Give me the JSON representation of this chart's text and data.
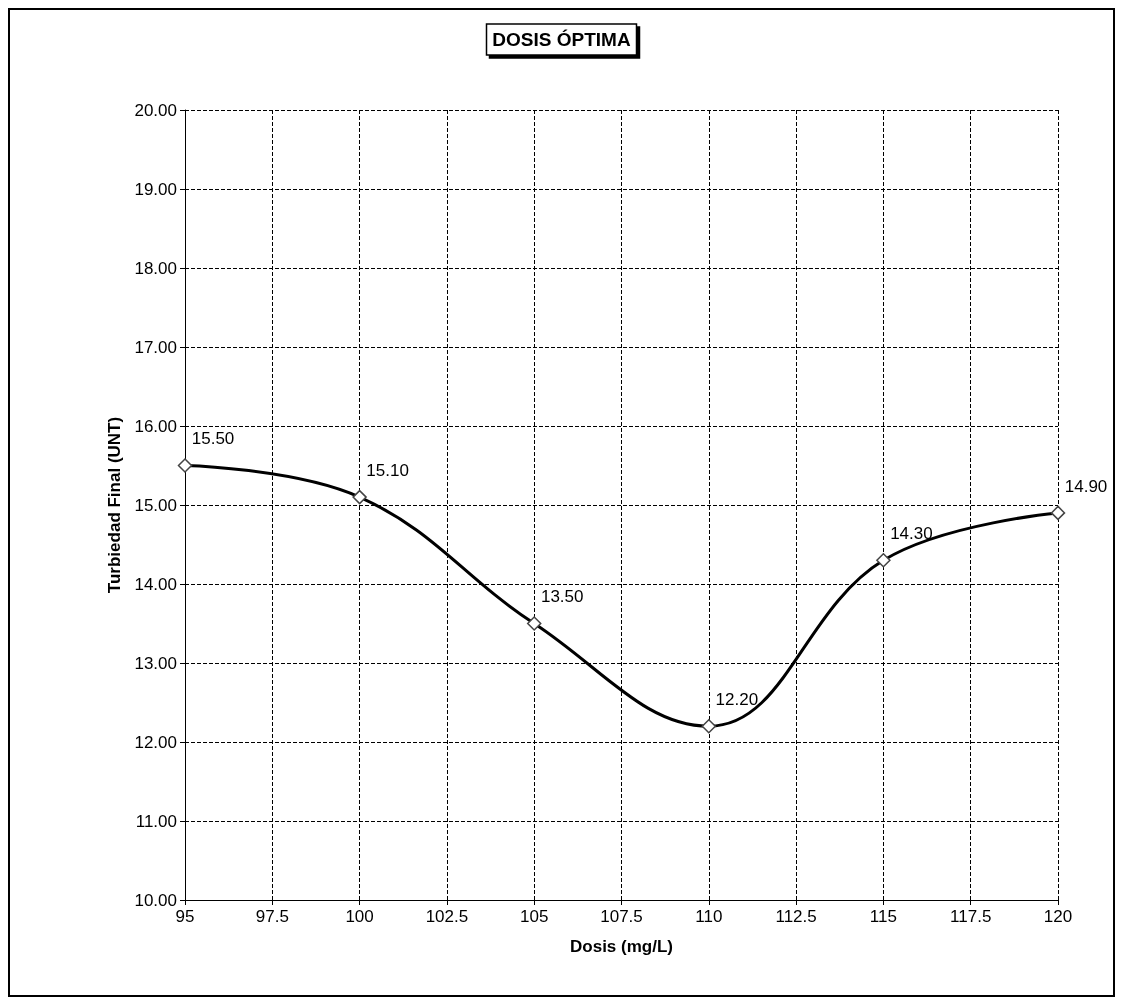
{
  "chart_data": {
    "type": "line",
    "title": "DOSIS ÓPTIMA",
    "xlabel": "Dosis (mg/L)",
    "ylabel": "Turbiedad Final (UNT)",
    "x": [
      95,
      100,
      105,
      110,
      115,
      120
    ],
    "series": [
      {
        "color": "#000000",
        "values": [
          15.5,
          15.1,
          13.5,
          12.2,
          14.3,
          14.9
        ],
        "value_labels": [
          "15.50",
          "15.10",
          "13.50",
          "12.20",
          "14.30",
          "14.90"
        ]
      }
    ],
    "xlim": [
      95,
      120
    ],
    "xticks": [
      95,
      97.5,
      100,
      102.5,
      105,
      107.5,
      110,
      112.5,
      115,
      117.5,
      120
    ],
    "ylim": [
      10,
      20
    ],
    "yticks": [
      {
        "value": 10,
        "label": "10.00"
      },
      {
        "value": 11,
        "label": "11.00"
      },
      {
        "value": 12,
        "label": "12.00"
      },
      {
        "value": 13,
        "label": "13.00"
      },
      {
        "value": 14,
        "label": "14.00"
      },
      {
        "value": 15,
        "label": "15.00"
      },
      {
        "value": 16,
        "label": "16.00"
      },
      {
        "value": 17,
        "label": "17.00"
      },
      {
        "value": 18,
        "label": "18.00"
      },
      {
        "value": 19,
        "label": "19.00"
      },
      {
        "value": 20,
        "label": "20.00"
      }
    ],
    "grid": true,
    "marker": "diamond",
    "line_style": "solid"
  }
}
